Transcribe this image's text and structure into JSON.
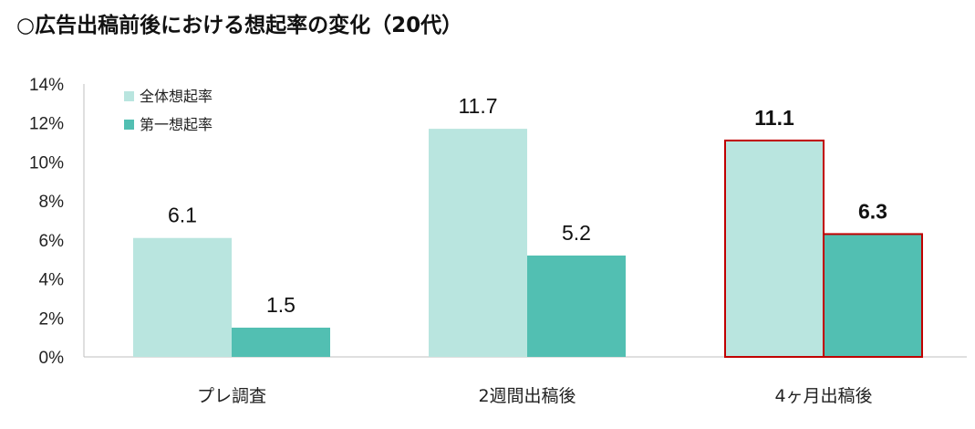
{
  "chart_data": {
    "type": "bar",
    "title": "○広告出稿前後における想起率の変化（20代）",
    "categories": [
      "プレ調査",
      "2週間出稿後",
      "4ヶ月出稿後"
    ],
    "series": [
      {
        "name": "全体想起率",
        "values": [
          6.1,
          11.7,
          11.1
        ],
        "labels": [
          "6.1",
          "11.7",
          "11.1"
        ],
        "color": "#b9e5df"
      },
      {
        "name": "第一想起率",
        "values": [
          1.5,
          5.2,
          6.3
        ],
        "labels": [
          "1.5",
          "5.2",
          "6.3"
        ],
        "color": "#52bfb2"
      }
    ],
    "ylim": [
      0,
      14
    ],
    "yticks": [
      "0%",
      "2%",
      "4%",
      "6%",
      "8%",
      "10%",
      "12%",
      "14%"
    ],
    "ytick_values": [
      0,
      2,
      4,
      6,
      8,
      10,
      12,
      14
    ],
    "grid": false,
    "legend": "top-left",
    "highlight_category_index": 2,
    "highlight_color": "#c00000"
  }
}
